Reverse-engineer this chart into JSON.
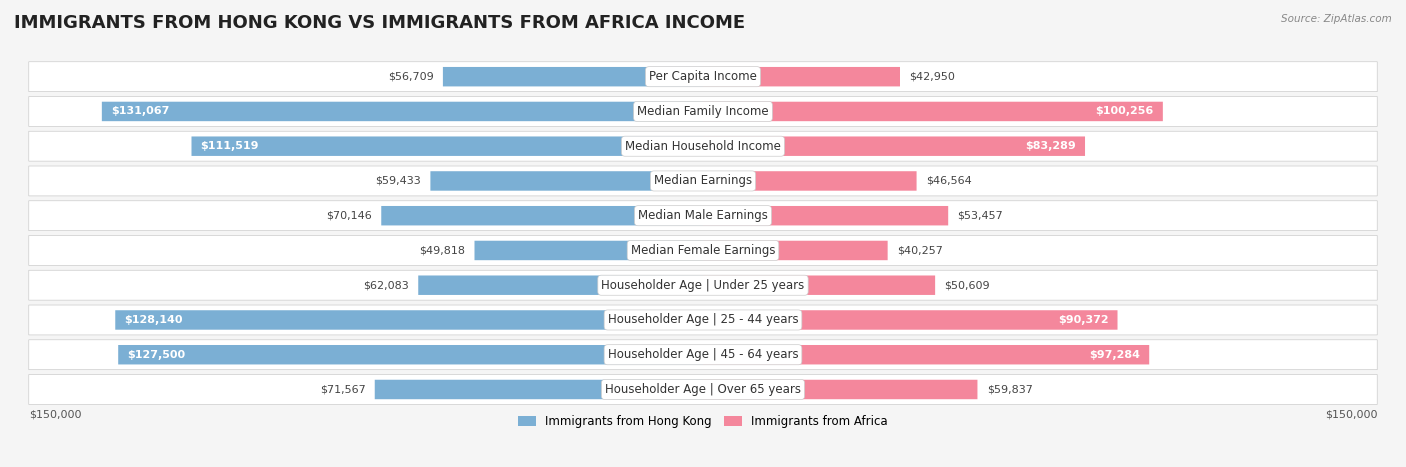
{
  "title": "IMMIGRANTS FROM HONG KONG VS IMMIGRANTS FROM AFRICA INCOME",
  "source": "Source: ZipAtlas.com",
  "categories": [
    "Per Capita Income",
    "Median Family Income",
    "Median Household Income",
    "Median Earnings",
    "Median Male Earnings",
    "Median Female Earnings",
    "Householder Age | Under 25 years",
    "Householder Age | 25 - 44 years",
    "Householder Age | 45 - 64 years",
    "Householder Age | Over 65 years"
  ],
  "hong_kong_values": [
    56709,
    131067,
    111519,
    59433,
    70146,
    49818,
    62083,
    128140,
    127500,
    71567
  ],
  "africa_values": [
    42950,
    100256,
    83289,
    46564,
    53457,
    40257,
    50609,
    90372,
    97284,
    59837
  ],
  "hong_kong_color": "#7bafd4",
  "africa_color": "#f4879c",
  "hong_kong_color_dark": "#5b9ec9",
  "africa_color_dark": "#f06888",
  "background_color": "#f5f5f5",
  "row_bg_color": "#ffffff",
  "max_value": 150000,
  "ylabel_left": "$150,000",
  "ylabel_right": "$150,000",
  "legend_hk": "Immigrants from Hong Kong",
  "legend_af": "Immigrants from Africa",
  "title_fontsize": 13,
  "label_fontsize": 8.5,
  "value_fontsize": 8,
  "category_fontsize": 8.5
}
